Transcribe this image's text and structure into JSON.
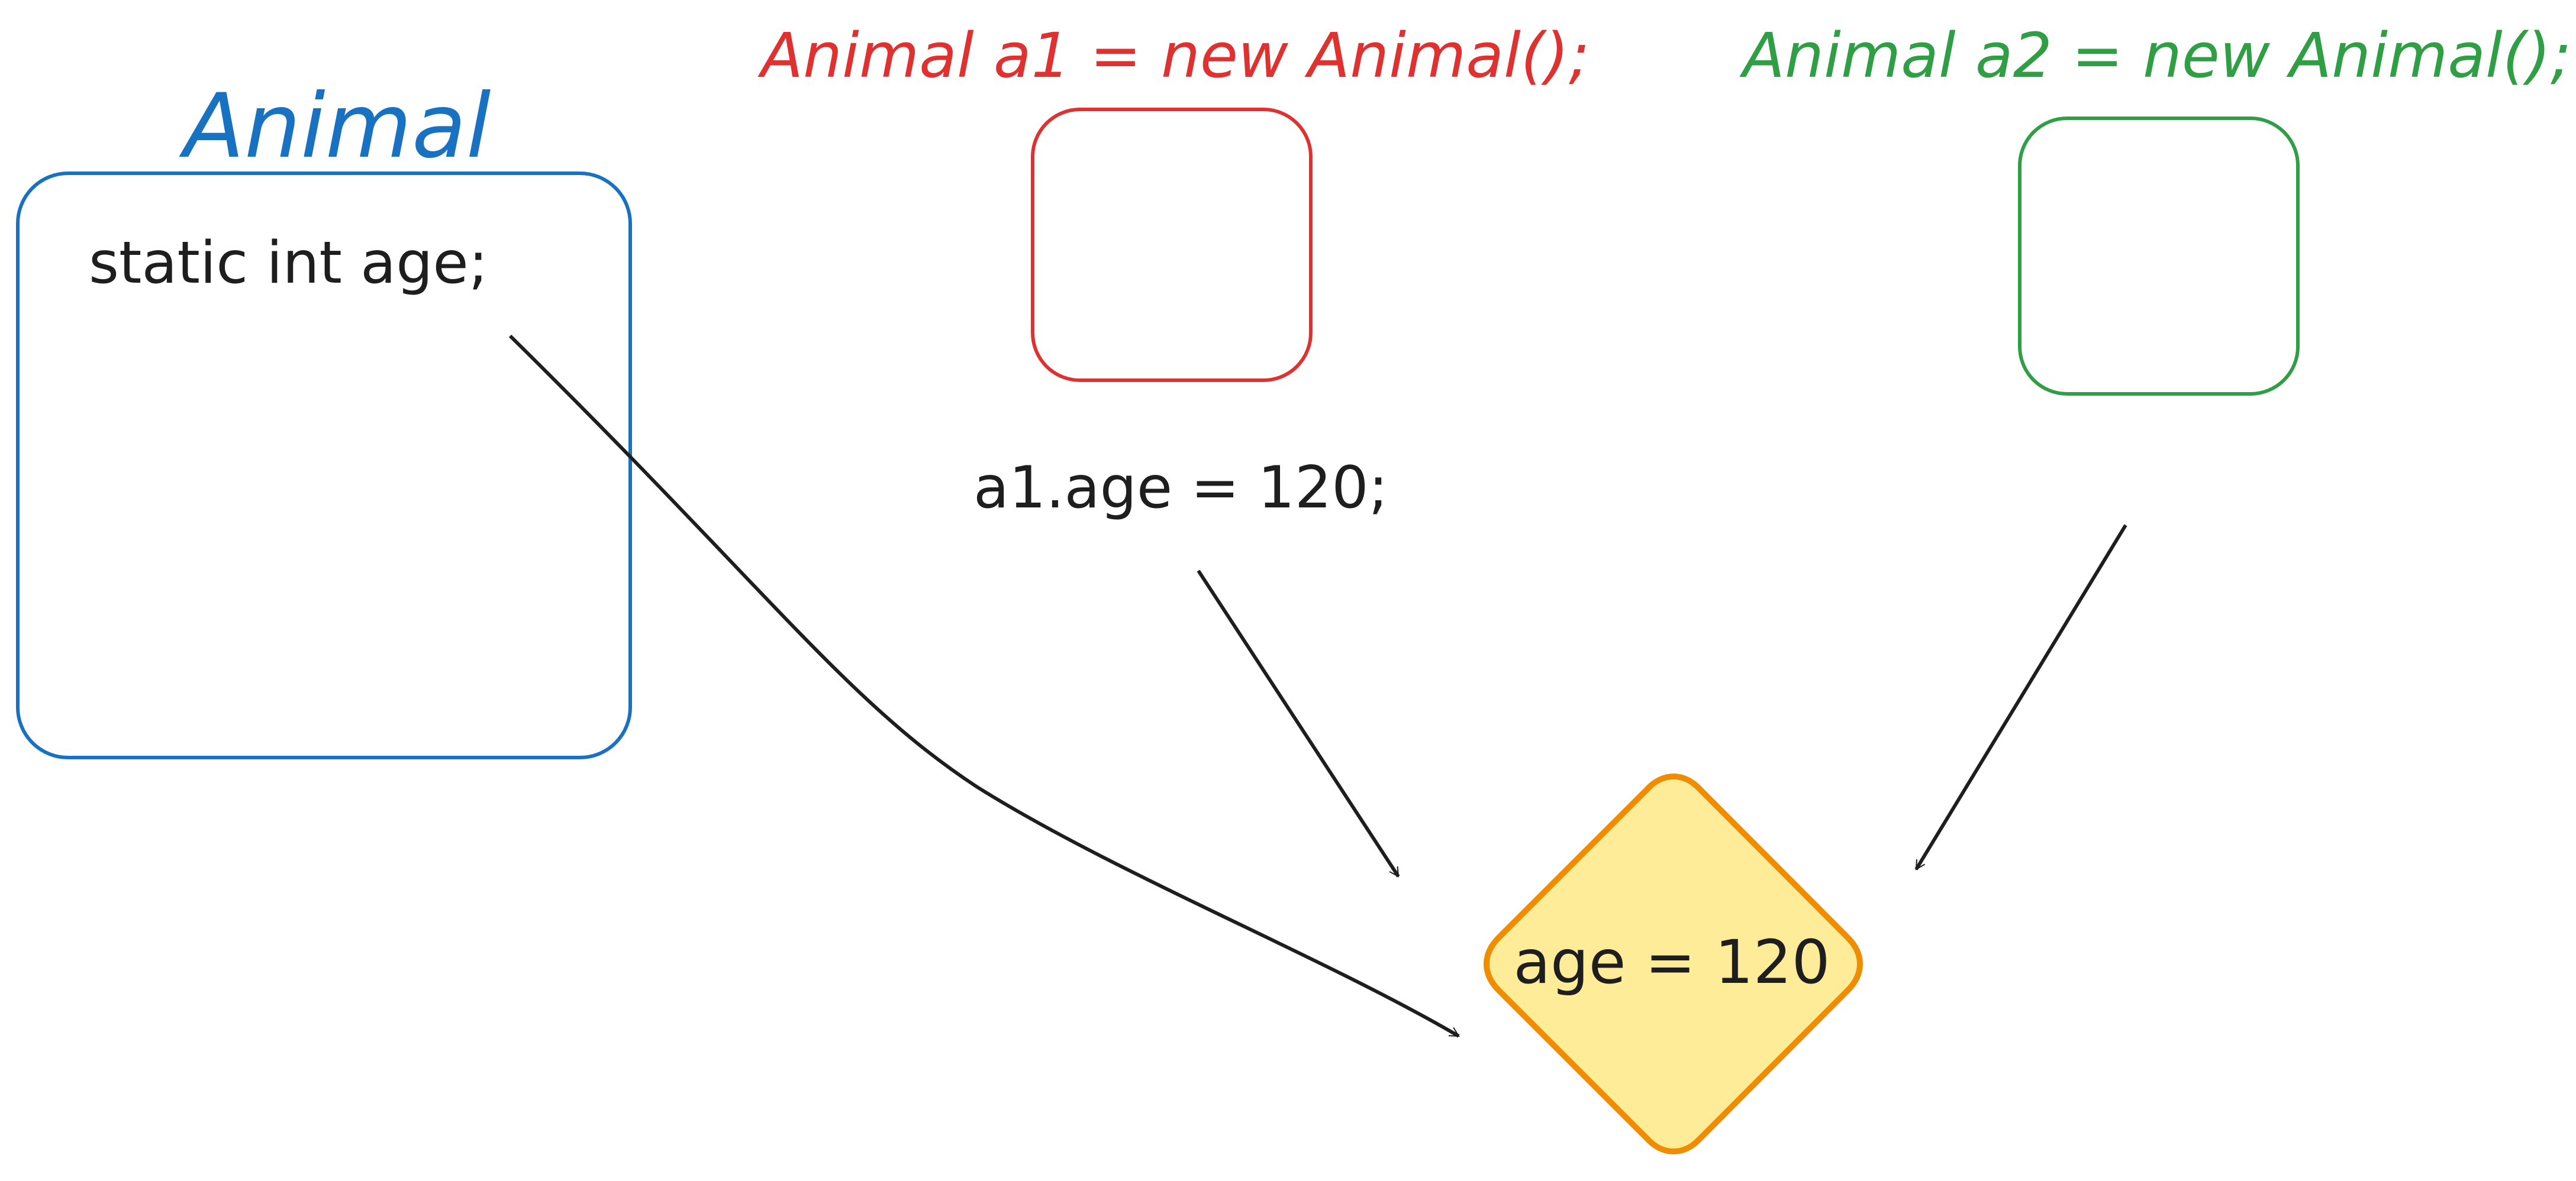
{
  "labels": {
    "animal_class_title": "Animal",
    "static_field": "static int age;",
    "a1_declaration": "Animal a1 = new Animal();",
    "a2_declaration": "Animal a2 = new Animal();",
    "a1_assignment": "a1.age = 120;",
    "shared_value": "age = 120"
  },
  "colors": {
    "class_stroke": "#1971c2",
    "a1_stroke": "#e03131",
    "a2_stroke": "#2f9e44",
    "text": "#1e1e1e",
    "arrow": "#1e1e1e",
    "diamond_stroke": "#f08c00",
    "diamond_fill": "#ffec99"
  }
}
